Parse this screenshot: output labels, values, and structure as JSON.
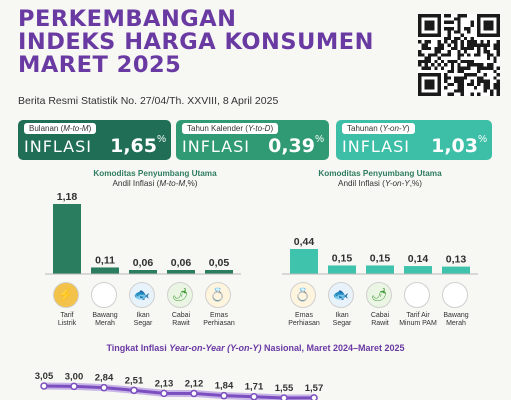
{
  "header": {
    "title_lines": [
      "PERKEMBANGAN",
      "INDEKS HARGA KONSUMEN",
      "MARET 2025"
    ],
    "subtitle": "Berita Resmi Statistik No. 27/04/Th. XXVIII, 8 April 2025"
  },
  "colors": {
    "purple": "#6a3aa3",
    "green_dark": "#1f6e55",
    "green_mid": "#2f9a74",
    "teal": "#3cbfa6",
    "green_bar": "#2a7d5e",
    "teal_bar": "#3fc3ad"
  },
  "cards": [
    {
      "caption_pre": "Bulanan (",
      "caption_em": "M-to-M",
      "caption_post": ")",
      "label": "INFLASI",
      "value": "1,65",
      "unit": "%"
    },
    {
      "caption_pre": "Tahun Kalender (",
      "caption_em": "Y-to-D",
      "caption_post": ")",
      "label": "INFLASI",
      "value": "0,39",
      "unit": "%"
    },
    {
      "caption_pre": "Tahunan (",
      "caption_em": "Y-on-Y",
      "caption_post": ")",
      "label": "INFLASI",
      "value": "1,03",
      "unit": "%"
    }
  ],
  "chart_data": [
    {
      "type": "bar",
      "title": "Komoditas Penyumbang Utama",
      "subtitle_pre": "Andil Inflasi (",
      "subtitle_em": "M-to-M",
      "subtitle_post": ",%)",
      "categories": [
        "Tarif Listrik",
        "Bawang Merah",
        "Ikan Segar",
        "Cabai Rawit",
        "Emas Perhiasan"
      ],
      "category_lines": [
        [
          "Tarif",
          "Listrik"
        ],
        [
          "Bawang",
          "Merah"
        ],
        [
          "Ikan",
          "Segar"
        ],
        [
          "Cabai",
          "Rawit"
        ],
        [
          "Emas",
          "Perhiasan"
        ]
      ],
      "values": [
        1.18,
        0.11,
        0.06,
        0.06,
        0.05
      ],
      "value_labels": [
        "1,18",
        "0,11",
        "0,06",
        "0,06",
        "0,05"
      ],
      "icons": [
        "electricity-icon",
        "shallot-icon",
        "fish-icon",
        "chili-icon",
        "jewelry-icon"
      ],
      "ylim": [
        0,
        1.18
      ]
    },
    {
      "type": "bar",
      "title": "Komoditas Penyumbang Utama",
      "subtitle_pre": "Andil Inflasi (",
      "subtitle_em": "Y-on-Y",
      "subtitle_post": ",%)",
      "categories": [
        "Emas Perhiasan",
        "Ikan Segar",
        "Cabai Rawit",
        "Tarif Air Minum PAM",
        "Bawang Merah"
      ],
      "category_lines": [
        [
          "Emas",
          "Perhiasan"
        ],
        [
          "Ikan",
          "Segar"
        ],
        [
          "Cabai",
          "Rawit"
        ],
        [
          "Tarif Air",
          "Minum PAM"
        ],
        [
          "Bawang",
          "Merah"
        ]
      ],
      "values": [
        0.44,
        0.15,
        0.15,
        0.14,
        0.13
      ],
      "value_labels": [
        "0,44",
        "0,15",
        "0,15",
        "0,14",
        "0,13"
      ],
      "icons": [
        "jewelry-icon",
        "fish-icon",
        "chili-icon",
        "water-tap-icon",
        "shallot-icon"
      ],
      "ylim": [
        0,
        0.44
      ]
    },
    {
      "type": "line",
      "title_pre": "Tingkat Inflasi ",
      "title_em": "Year-on-Year (Y-on-Y)",
      "title_post": " Nasional, Maret 2024–Maret 2025",
      "values": [
        3.05,
        3.0,
        2.84,
        2.51,
        2.13,
        2.12,
        1.84,
        1.71,
        1.55,
        1.57
      ],
      "value_labels": [
        "3,05",
        "3,00",
        "2,84",
        "2,51",
        "2,13",
        "2,12",
        "1,84",
        "1,71",
        "1,55",
        "1,57"
      ]
    }
  ]
}
